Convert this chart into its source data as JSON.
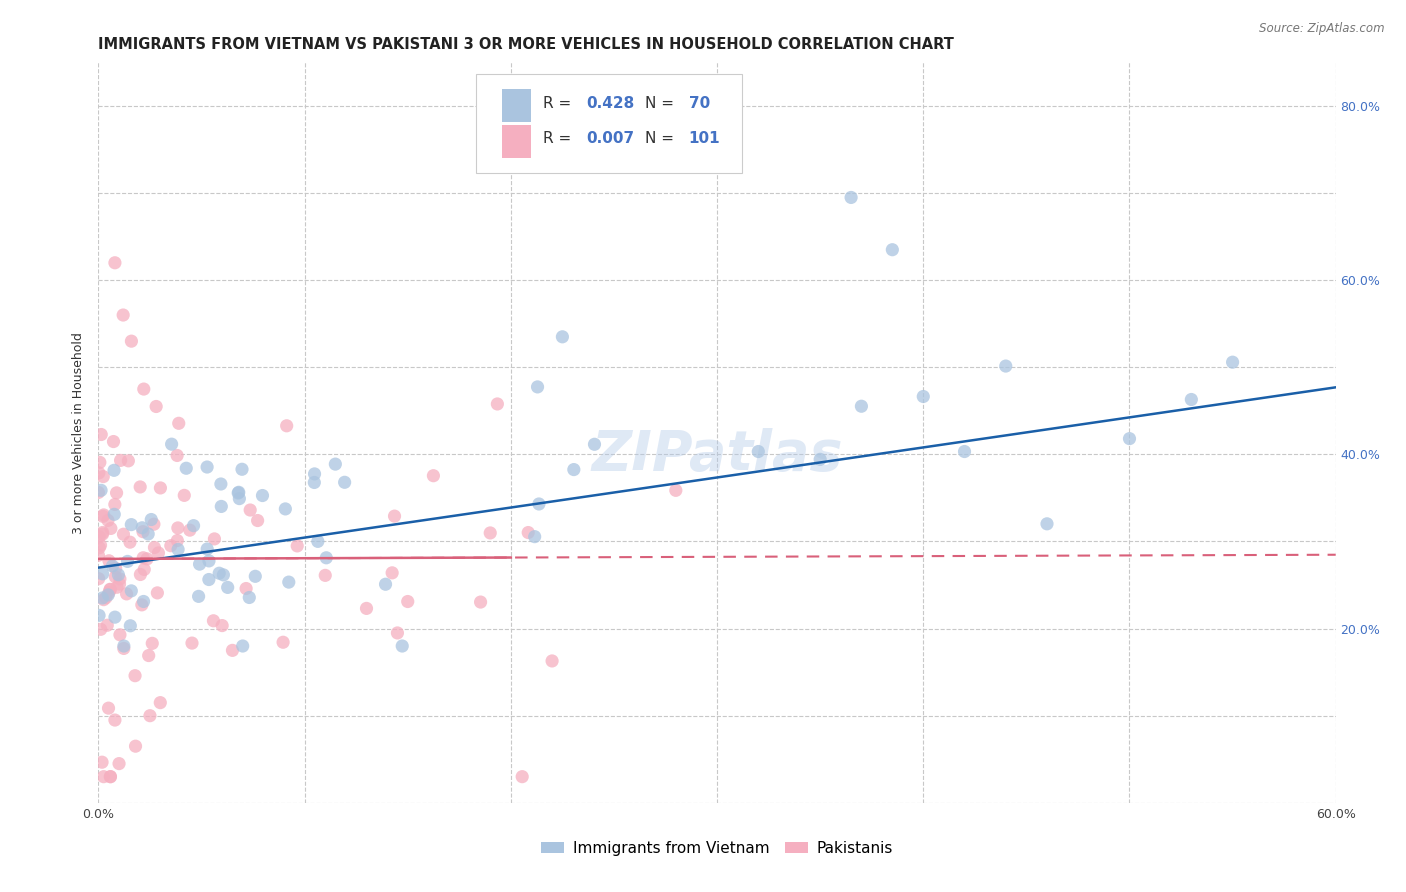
{
  "title": "IMMIGRANTS FROM VIETNAM VS PAKISTANI 3 OR MORE VEHICLES IN HOUSEHOLD CORRELATION CHART",
  "source": "Source: ZipAtlas.com",
  "ylabel": "3 or more Vehicles in Household",
  "xlabel": "",
  "xlim": [
    0.0,
    0.6
  ],
  "ylim": [
    0.0,
    0.85
  ],
  "xtick_positions": [
    0.0,
    0.1,
    0.2,
    0.3,
    0.4,
    0.5,
    0.6
  ],
  "xtick_labels": [
    "0.0%",
    "",
    "",
    "",
    "",
    "",
    "60.0%"
  ],
  "ytick_positions": [
    0.0,
    0.1,
    0.2,
    0.3,
    0.4,
    0.5,
    0.6,
    0.7,
    0.8
  ],
  "ytick_labels_right": [
    "",
    "",
    "20.0%",
    "",
    "40.0%",
    "",
    "60.0%",
    "",
    "80.0%"
  ],
  "watermark": "ZIPatlas",
  "legend_blue_R": "0.428",
  "legend_blue_N": "70",
  "legend_pink_R": "0.007",
  "legend_pink_N": "101",
  "blue_color": "#aac4df",
  "pink_color": "#f5afc0",
  "blue_line_color": "#1a5fa8",
  "pink_line_color": "#d9607a",
  "grid_color": "#c8c8c8",
  "background_color": "#ffffff",
  "title_fontsize": 10.5,
  "axis_label_fontsize": 9,
  "tick_fontsize": 9,
  "legend_fontsize": 11,
  "source_fontsize": 8.5,
  "blue_intercept": 0.27,
  "blue_slope": 0.345,
  "pink_intercept": 0.28,
  "pink_slope": 0.008
}
